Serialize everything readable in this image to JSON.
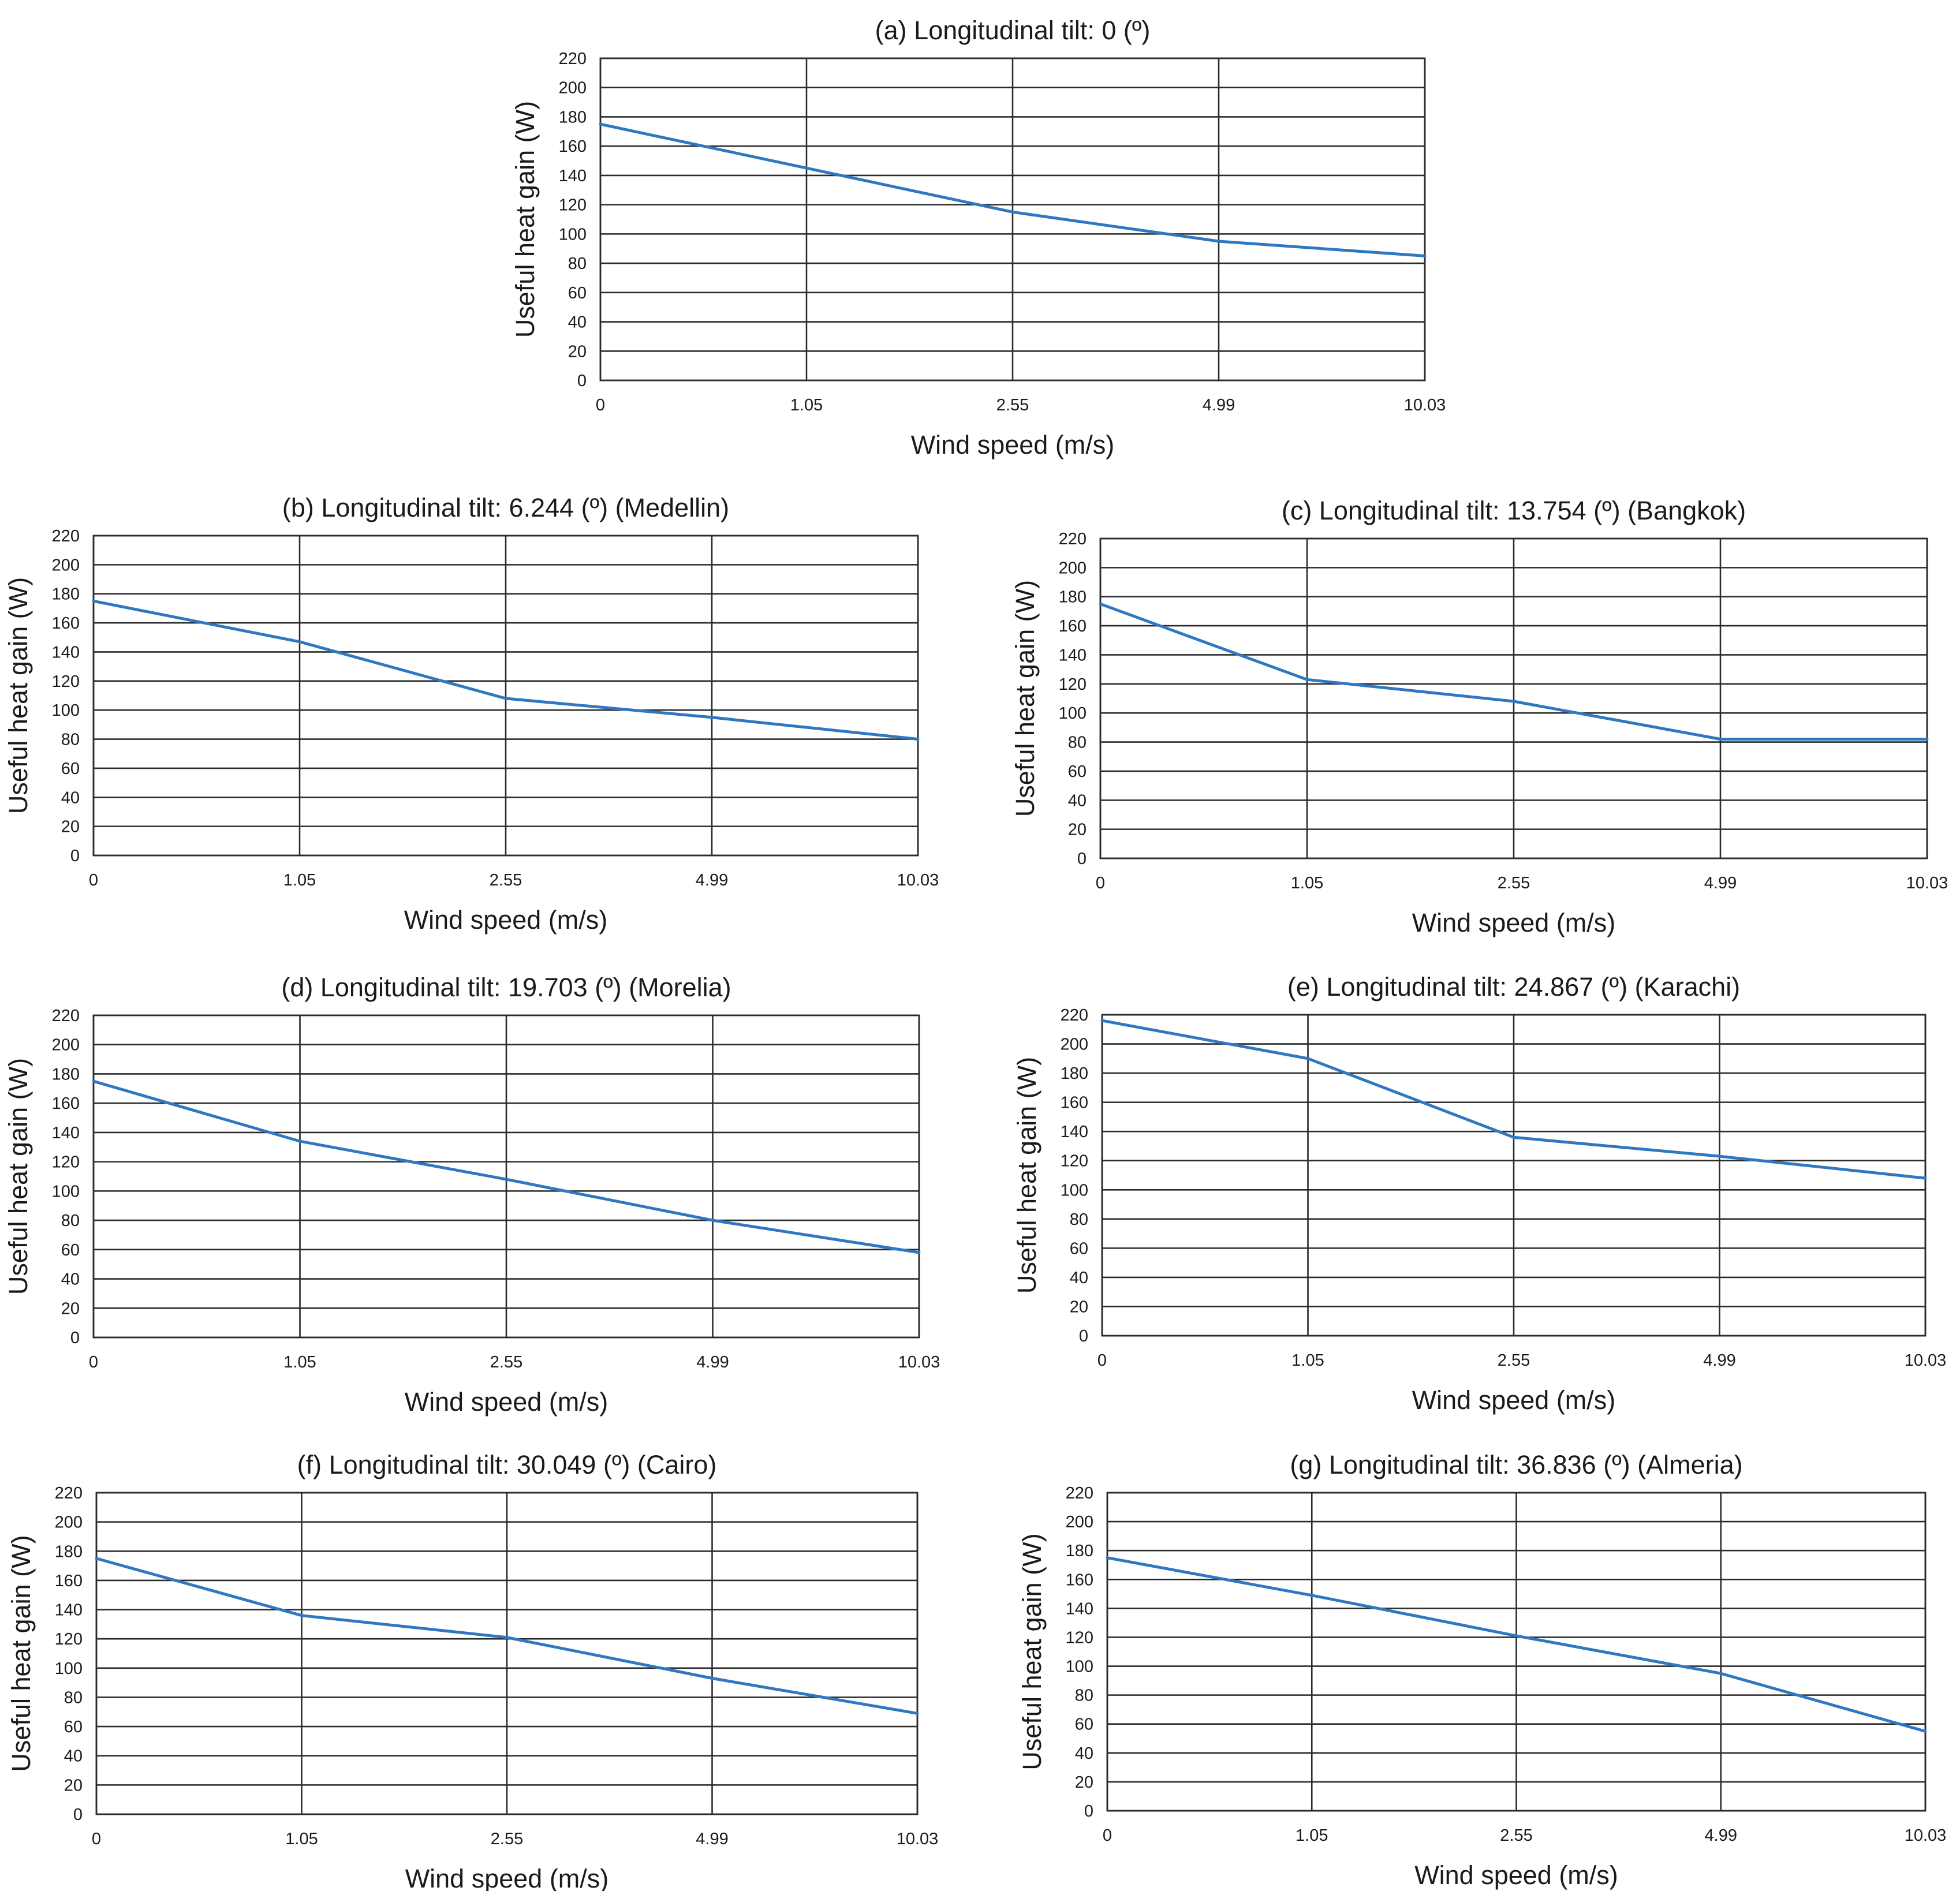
{
  "colors": {
    "line": "#2f78c1",
    "grid": "#2b2b2b",
    "text": "#1a1a1a",
    "background": "#ffffff"
  },
  "chart_data": [
    {
      "id": "a",
      "type": "line",
      "title": "(a) Longitudinal tilt: 0 (º)",
      "xlabel": "Wind speed (m/s)",
      "ylabel": "Useful heat gain (W)",
      "categories": [
        "0",
        "1.05",
        "2.55",
        "4.99",
        "10.03"
      ],
      "y_ticks": [
        "0",
        "20",
        "40",
        "60",
        "80",
        "100",
        "120",
        "140",
        "160",
        "180",
        "200",
        "220"
      ],
      "ylim": [
        0,
        220
      ],
      "grid": true,
      "series": [
        {
          "name": "Useful heat gain",
          "values": [
            175,
            145,
            115,
            95,
            85
          ]
        }
      ]
    },
    {
      "id": "b",
      "type": "line",
      "title": "(b) Longitudinal tilt: 6.244 (º) (Medellin)",
      "xlabel": "Wind speed (m/s)",
      "ylabel": "Useful heat gain (W)",
      "categories": [
        "0",
        "1.05",
        "2.55",
        "4.99",
        "10.03"
      ],
      "y_ticks": [
        "0",
        "20",
        "40",
        "60",
        "80",
        "100",
        "120",
        "140",
        "160",
        "180",
        "200",
        "220"
      ],
      "ylim": [
        0,
        220
      ],
      "grid": true,
      "series": [
        {
          "name": "Useful heat gain",
          "values": [
            175,
            147,
            108,
            95,
            80
          ]
        }
      ]
    },
    {
      "id": "c",
      "type": "line",
      "title": "(c) Longitudinal tilt: 13.754 (º) (Bangkok)",
      "xlabel": "Wind speed (m/s)",
      "ylabel": "Useful heat gain (W)",
      "categories": [
        "0",
        "1.05",
        "2.55",
        "4.99",
        "10.03"
      ],
      "y_ticks": [
        "0",
        "20",
        "40",
        "60",
        "80",
        "100",
        "120",
        "140",
        "160",
        "180",
        "200",
        "220"
      ],
      "ylim": [
        0,
        220
      ],
      "grid": true,
      "series": [
        {
          "name": "Useful heat gain",
          "values": [
            175,
            123,
            108,
            82,
            82
          ]
        }
      ]
    },
    {
      "id": "d",
      "type": "line",
      "title": "(d) Longitudinal tilt: 19.703 (º) (Morelia)",
      "xlabel": "Wind speed (m/s)",
      "ylabel": "Useful heat gain (W)",
      "categories": [
        "0",
        "1.05",
        "2.55",
        "4.99",
        "10.03"
      ],
      "y_ticks": [
        "0",
        "20",
        "40",
        "60",
        "80",
        "100",
        "120",
        "140",
        "160",
        "180",
        "200",
        "220"
      ],
      "ylim": [
        0,
        220
      ],
      "grid": true,
      "series": [
        {
          "name": "Useful heat gain",
          "values": [
            175,
            134,
            108,
            80,
            58
          ]
        }
      ]
    },
    {
      "id": "e",
      "type": "line",
      "title": "(e) Longitudinal tilt: 24.867 (º) (Karachi)",
      "xlabel": "Wind speed (m/s)",
      "ylabel": "Useful heat gain (W)",
      "categories": [
        "0",
        "1.05",
        "2.55",
        "4.99",
        "10.03"
      ],
      "y_ticks": [
        "0",
        "20",
        "40",
        "60",
        "80",
        "100",
        "120",
        "140",
        "160",
        "180",
        "200",
        "220"
      ],
      "ylim": [
        0,
        220
      ],
      "grid": true,
      "series": [
        {
          "name": "Useful heat gain",
          "values": [
            216,
            190,
            136,
            123,
            108
          ]
        }
      ]
    },
    {
      "id": "f",
      "type": "line",
      "title": "(f) Longitudinal tilt: 30.049 (º) (Cairo)",
      "xlabel": "Wind speed (m/s)",
      "ylabel": "Useful heat gain (W)",
      "categories": [
        "0",
        "1.05",
        "2.55",
        "4.99",
        "10.03"
      ],
      "y_ticks": [
        "0",
        "20",
        "40",
        "60",
        "80",
        "100",
        "120",
        "140",
        "160",
        "180",
        "200",
        "220"
      ],
      "ylim": [
        0,
        220
      ],
      "grid": true,
      "series": [
        {
          "name": "Useful heat gain",
          "values": [
            175,
            136,
            121,
            93,
            69
          ]
        }
      ]
    },
    {
      "id": "g",
      "type": "line",
      "title": "(g) Longitudinal tilt: 36.836 (º) (Almeria)",
      "xlabel": "Wind speed (m/s)",
      "ylabel": "Useful heat gain (W)",
      "categories": [
        "0",
        "1.05",
        "2.55",
        "4.99",
        "10.03"
      ],
      "y_ticks": [
        "0",
        "20",
        "40",
        "60",
        "80",
        "100",
        "120",
        "140",
        "160",
        "180",
        "200",
        "220"
      ],
      "ylim": [
        0,
        220
      ],
      "grid": true,
      "series": [
        {
          "name": "Useful heat gain",
          "values": [
            175,
            149,
            121,
            95,
            55
          ]
        }
      ]
    }
  ]
}
